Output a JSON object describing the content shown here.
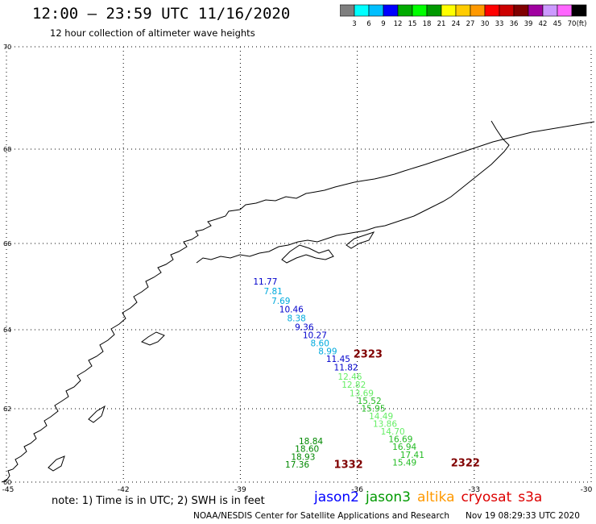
{
  "header": {
    "title": "12:00 — 23:59 UTC 11/16/2020",
    "subtitle": "12 hour collection of altimeter wave heights"
  },
  "colorbar": {
    "colors": [
      "#7f7f7f",
      "#00ffff",
      "#00bfff",
      "#0000ff",
      "#00aa00",
      "#00ff00",
      "#009900",
      "#ffff00",
      "#ffcc00",
      "#ff9900",
      "#ff0000",
      "#cc0000",
      "#800000",
      "#a000a0",
      "#cc99ff",
      "#ff66ff",
      "#000000"
    ],
    "labels": [
      "3",
      "6",
      "9",
      "12",
      "15",
      "18",
      "21",
      "24",
      "27",
      "30",
      "33",
      "36",
      "39",
      "42",
      "45",
      "70"
    ],
    "unit": "(ft)"
  },
  "axes": {
    "lon_ticks": [
      "-45",
      "-42",
      "-39",
      "-36",
      "-33",
      "-30"
    ],
    "lat_ticks": [
      "70",
      "68",
      "66",
      "64",
      "62",
      "60"
    ]
  },
  "observations": [
    {
      "label": "11.77",
      "color": "#0000cc",
      "lon": -38.67,
      "lat": 65.05
    },
    {
      "label": "7.81",
      "color": "#00aadd",
      "lon": -38.4,
      "lat": 64.82
    },
    {
      "label": "7.69",
      "color": "#00aadd",
      "lon": -38.2,
      "lat": 64.6
    },
    {
      "label": "10.46",
      "color": "#0000cc",
      "lon": -38.0,
      "lat": 64.4
    },
    {
      "label": "8.38",
      "color": "#00aadd",
      "lon": -37.8,
      "lat": 64.2
    },
    {
      "label": "9.36",
      "color": "#0000cc",
      "lon": -37.6,
      "lat": 63.99
    },
    {
      "label": "10.27",
      "color": "#0000cc",
      "lon": -37.4,
      "lat": 63.79
    },
    {
      "label": "8.60",
      "color": "#00aadd",
      "lon": -37.2,
      "lat": 63.58
    },
    {
      "label": "8.99",
      "color": "#00aadd",
      "lon": -37.0,
      "lat": 63.38
    },
    {
      "label": "11.45",
      "color": "#0000cc",
      "lon": -36.8,
      "lat": 63.18
    },
    {
      "label": "11.82",
      "color": "#0000cc",
      "lon": -36.6,
      "lat": 62.97
    },
    {
      "label": "12.46",
      "color": "#66ee66",
      "lon": -36.5,
      "lat": 62.73
    },
    {
      "label": "12.82",
      "color": "#66ee66",
      "lon": -36.4,
      "lat": 62.53
    },
    {
      "label": "13.69",
      "color": "#66ee66",
      "lon": -36.2,
      "lat": 62.32
    },
    {
      "label": "15.52",
      "color": "#22bb22",
      "lon": -36.0,
      "lat": 62.12
    },
    {
      "label": "15.95",
      "color": "#22bb22",
      "lon": -35.9,
      "lat": 61.92
    },
    {
      "label": "14.49",
      "color": "#66ee66",
      "lon": -35.7,
      "lat": 61.71
    },
    {
      "label": "13.86",
      "color": "#66ee66",
      "lon": -35.6,
      "lat": 61.51
    },
    {
      "label": "14.70",
      "color": "#66ee66",
      "lon": -35.4,
      "lat": 61.3
    },
    {
      "label": "16.69",
      "color": "#22bb22",
      "lon": -35.2,
      "lat": 61.09
    },
    {
      "label": "16.94",
      "color": "#22bb22",
      "lon": -35.1,
      "lat": 60.88
    },
    {
      "label": "17.41",
      "color": "#22bb22",
      "lon": -34.9,
      "lat": 60.66
    },
    {
      "label": "15.49",
      "color": "#22bb22",
      "lon": -35.1,
      "lat": 60.45
    },
    {
      "label": "18.84",
      "color": "#008800",
      "lon": -37.5,
      "lat": 61.03
    },
    {
      "label": "18.60",
      "color": "#008800",
      "lon": -37.6,
      "lat": 60.82
    },
    {
      "label": "18.93",
      "color": "#008800",
      "lon": -37.7,
      "lat": 60.6
    },
    {
      "label": "17.36",
      "color": "#008800",
      "lon": -37.85,
      "lat": 60.4
    }
  ],
  "track_labels": [
    {
      "label": "2323",
      "color": "#800000",
      "lon": -36.1,
      "lat": 63.3
    },
    {
      "label": "1332",
      "color": "#800000",
      "lon": -36.6,
      "lat": 60.38
    },
    {
      "label": "2322",
      "color": "#800000",
      "lon": -33.6,
      "lat": 60.43
    }
  ],
  "footer": {
    "note": "note:  1) Time is in UTC;  2) SWH is in feet",
    "satellites": [
      {
        "name": "jason2",
        "color": "#0000ff"
      },
      {
        "name": "jason3",
        "color": "#009900"
      },
      {
        "name": "altika",
        "color": "#ff9900"
      },
      {
        "name": "cryosat",
        "color": "#dd0000"
      },
      {
        "name": "s3a",
        "color": "#dd0000"
      }
    ],
    "credit": "NOAA/NESDIS Center for Satellite Applications and Research",
    "timestamp": "Nov 19 08:29:33 UTC 2020"
  }
}
